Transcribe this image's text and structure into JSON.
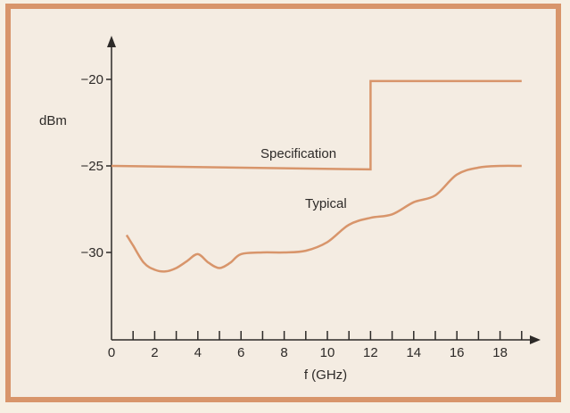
{
  "chart_data": {
    "type": "line",
    "xlabel": "f (GHz)",
    "ylabel": "dBm",
    "xlim": [
      0,
      20
    ],
    "ylim": [
      -35,
      -18.5
    ],
    "xticks": [
      0,
      2,
      4,
      6,
      8,
      10,
      12,
      14,
      16,
      18
    ],
    "yticks": [
      -20,
      -25,
      -30
    ],
    "xtick_labels": [
      "0",
      "2",
      "4",
      "6",
      "8",
      "10",
      "12",
      "14",
      "16",
      "18"
    ],
    "ytick_labels": [
      "−20",
      "−25",
      "−30"
    ],
    "grid": false,
    "series": [
      {
        "name": "Specification",
        "color": "#d8956b",
        "x": [
          0,
          12,
          12,
          19
        ],
        "y": [
          -25,
          -25.2,
          -20.1,
          -20.1
        ]
      },
      {
        "name": "Typical",
        "color": "#d8956b",
        "x": [
          0.7,
          1.0,
          1.5,
          2.0,
          2.5,
          3.0,
          3.5,
          4.0,
          4.5,
          5.0,
          5.5,
          6.0,
          7.0,
          8.0,
          9.0,
          10.0,
          11.0,
          12.0,
          13.0,
          14.0,
          15.0,
          16.0,
          17.0,
          18.0,
          19.0
        ],
        "y": [
          -29.0,
          -29.6,
          -30.6,
          -31.0,
          -31.1,
          -30.9,
          -30.5,
          -30.1,
          -30.6,
          -30.9,
          -30.6,
          -30.1,
          -30.0,
          -30.0,
          -29.9,
          -29.4,
          -28.4,
          -28.0,
          -27.8,
          -27.1,
          -26.7,
          -25.5,
          -25.1,
          -25.0,
          -25.0
        ]
      }
    ]
  }
}
